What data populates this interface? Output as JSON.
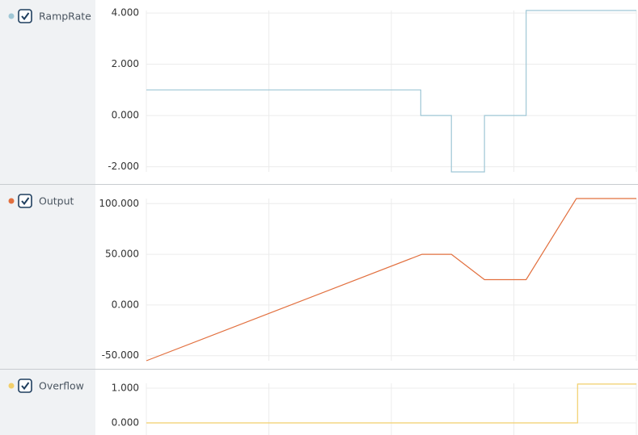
{
  "chart_data": [
    {
      "type": "line",
      "x": [
        0,
        2.24,
        2.24,
        2.49,
        2.49,
        2.76,
        2.76,
        3.1,
        3.1,
        4
      ],
      "series": [
        {
          "name": "RampRate",
          "color": "#9fc7d6",
          "values": [
            1,
            1,
            0,
            0,
            -2.2,
            -2.2,
            0,
            0,
            4.1,
            4.1
          ]
        }
      ],
      "xlim": [
        0,
        4
      ],
      "xticks": [
        0,
        1,
        2,
        3,
        4
      ],
      "ylim": [
        -2.2,
        4.1
      ],
      "yticks": [
        {
          "value": -2,
          "label": "-2.000"
        },
        {
          "value": 0,
          "label": "0.000"
        },
        {
          "value": 2,
          "label": "2.000"
        },
        {
          "value": 4,
          "label": "4.000"
        }
      ],
      "grid": true
    },
    {
      "type": "line",
      "x": [
        0,
        2.25,
        2.49,
        2.76,
        3.1,
        3.51,
        4
      ],
      "series": [
        {
          "name": "Output",
          "color": "#e2703f",
          "values": [
            -55,
            50,
            50,
            25,
            25,
            105,
            105
          ]
        }
      ],
      "xlim": [
        0,
        4
      ],
      "xticks": [
        0,
        1,
        2,
        3,
        4
      ],
      "ylim": [
        -55,
        105
      ],
      "yticks": [
        {
          "value": -50,
          "label": "-50.000"
        },
        {
          "value": 0,
          "label": "0.000"
        },
        {
          "value": 50,
          "label": "50.000"
        },
        {
          "value": 100,
          "label": "100.000"
        }
      ],
      "grid": true
    },
    {
      "type": "line",
      "x": [
        0,
        3.52,
        3.52,
        4
      ],
      "series": [
        {
          "name": "Overflow",
          "color": "#f2cf6a",
          "values": [
            0,
            0,
            1.12,
            1.12
          ]
        }
      ],
      "xlim": [
        0,
        4
      ],
      "xticks": [
        0,
        1,
        2,
        3,
        4
      ],
      "ylim": [
        -0.35,
        1.14
      ],
      "yticks": [
        {
          "value": 0,
          "label": "0.000"
        },
        {
          "value": 1,
          "label": "1.000"
        }
      ],
      "grid": true
    }
  ]
}
